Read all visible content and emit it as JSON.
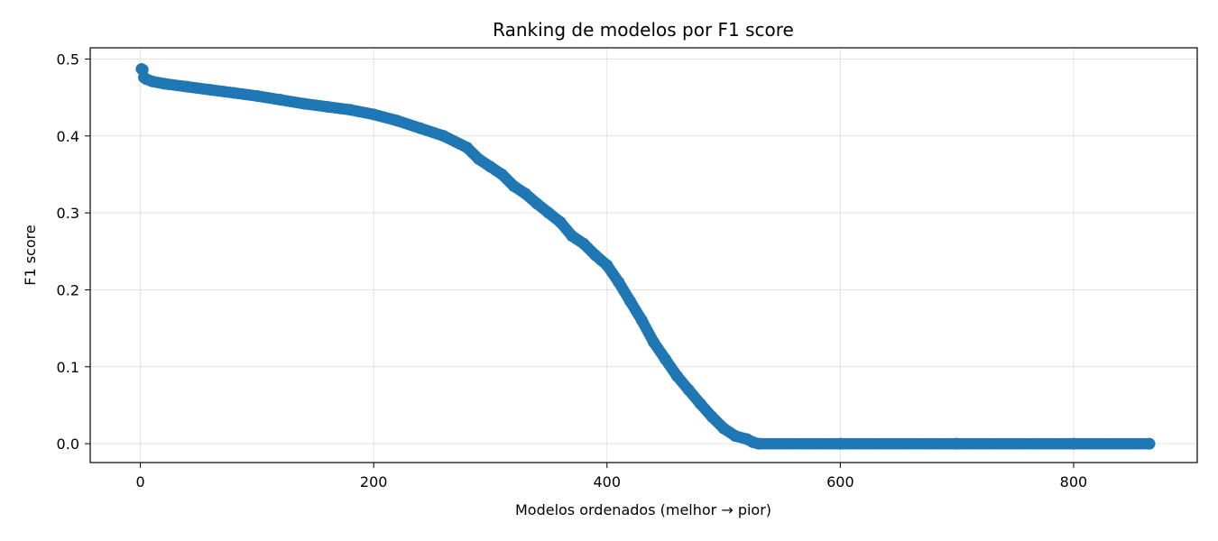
{
  "chart_data": {
    "type": "scatter",
    "title": "Ranking de modelos por F1 score",
    "xlabel": "Modelos ordenados (melhor → pior)",
    "ylabel": "F1 score",
    "xlim": [
      -43,
      906
    ],
    "ylim": [
      -0.0245,
      0.5146
    ],
    "xticks": [
      0,
      200,
      400,
      600,
      800
    ],
    "xtick_labels": [
      "0",
      "200",
      "400",
      "600",
      "800"
    ],
    "yticks": [
      0.0,
      0.1,
      0.2,
      0.3,
      0.4,
      0.5
    ],
    "ytick_labels": [
      "0.0",
      "0.1",
      "0.2",
      "0.3",
      "0.4",
      "0.5"
    ],
    "grid": true,
    "marker_color": "#1f77b4",
    "series": [
      {
        "x": [
          1,
          2,
          3,
          5,
          10,
          20,
          40,
          60,
          80,
          100,
          120,
          140,
          160,
          180,
          200,
          220,
          240,
          260,
          280,
          290,
          300,
          310,
          320,
          330,
          340,
          350,
          360,
          370,
          380,
          390,
          400,
          410,
          420,
          430,
          440,
          450,
          460,
          470,
          480,
          490,
          500,
          510,
          520,
          525,
          530,
          600,
          700,
          800,
          865
        ],
        "y": [
          0.487,
          0.486,
          0.476,
          0.474,
          0.471,
          0.468,
          0.464,
          0.46,
          0.456,
          0.452,
          0.447,
          0.442,
          0.438,
          0.434,
          0.428,
          0.42,
          0.41,
          0.4,
          0.385,
          0.37,
          0.36,
          0.35,
          0.335,
          0.325,
          0.312,
          0.3,
          0.288,
          0.27,
          0.26,
          0.245,
          0.232,
          0.21,
          0.185,
          0.16,
          0.132,
          0.11,
          0.088,
          0.07,
          0.052,
          0.035,
          0.02,
          0.01,
          0.006,
          0.002,
          0.0,
          0.0,
          0.0,
          0.0,
          0.0
        ]
      }
    ]
  }
}
